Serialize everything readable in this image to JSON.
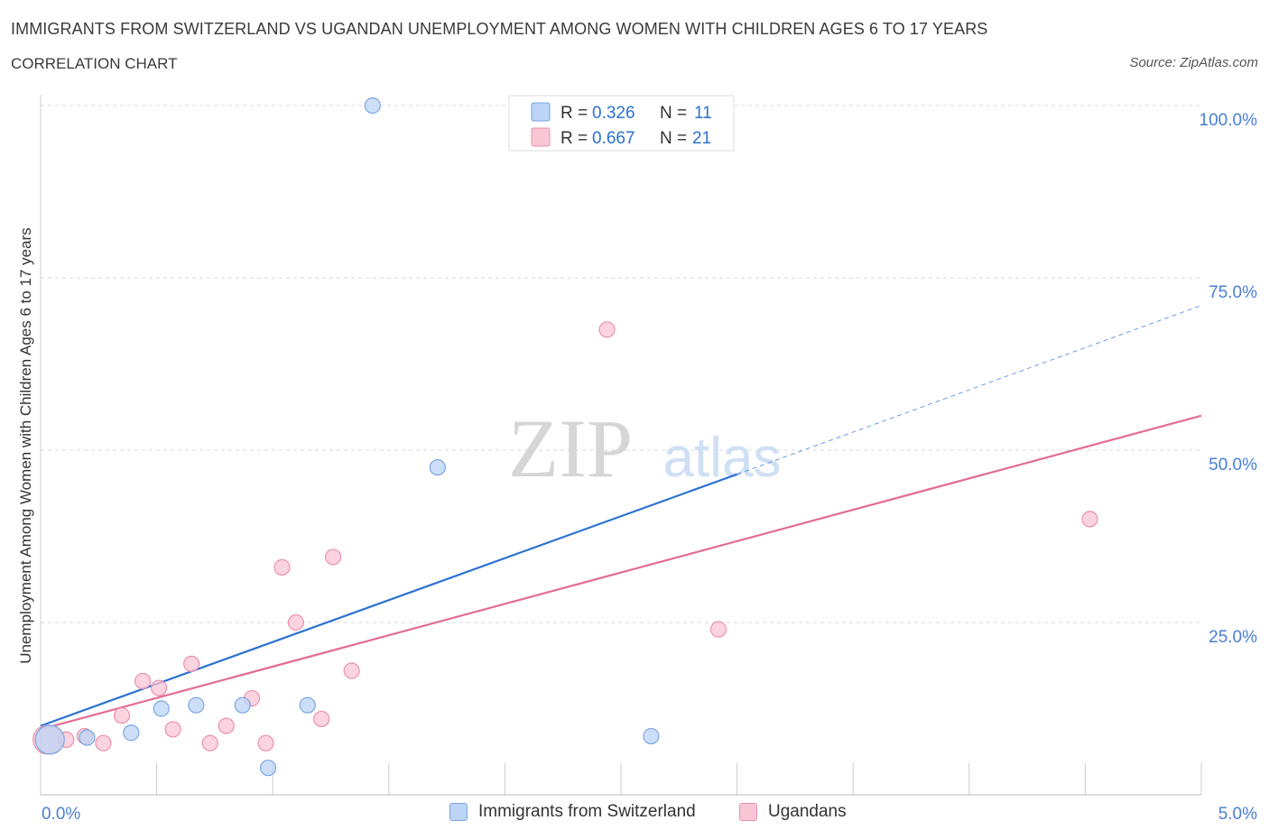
{
  "header": {
    "title": "IMMIGRANTS FROM SWITZERLAND VS UGANDAN UNEMPLOYMENT AMONG WOMEN WITH CHILDREN AGES 6 TO 17 YEARS",
    "subtitle": "CORRELATION CHART",
    "source": "Source: ZipAtlas.com"
  },
  "colors": {
    "blue_fill": "#bcd4f5",
    "blue_stroke": "#7aa6e0",
    "blue_line": "#2b72d1",
    "pink_fill": "#f9c6d6",
    "pink_stroke": "#eb90ae",
    "pink_line": "#e36b96",
    "axis_label": "#4a7fd4",
    "grid": "#d9d9d9"
  },
  "chart_data": {
    "type": "scatter",
    "ylabel": "Unemployment Among Women with Children Ages 6 to 17 years",
    "xlim": [
      0,
      5
    ],
    "ylim": [
      0,
      100
    ],
    "x_tick_labels": [
      "0.0%",
      "5.0%"
    ],
    "y_tick_labels": [
      "25.0%",
      "50.0%",
      "75.0%",
      "100.0%"
    ],
    "y_ticks": [
      25,
      50,
      75,
      100
    ],
    "grid": true,
    "legend_position": "top-center",
    "watermark": {
      "zip": "ZIP",
      "atlas": "atlas"
    },
    "legend_stats": [
      {
        "r_label": "R = ",
        "r_value": "0.326",
        "n_label": "N = ",
        "n_value": "11"
      },
      {
        "r_label": "R = ",
        "r_value": "0.667",
        "n_label": "N = ",
        "n_value": "21"
      }
    ],
    "series": [
      {
        "name": "Immigrants from Switzerland",
        "points": [
          {
            "x": 0.04,
            "y": 8.0,
            "size": "large"
          },
          {
            "x": 0.2,
            "y": 8.3
          },
          {
            "x": 0.39,
            "y": 9.0
          },
          {
            "x": 0.52,
            "y": 12.5
          },
          {
            "x": 0.67,
            "y": 13.0
          },
          {
            "x": 0.87,
            "y": 13.0
          },
          {
            "x": 0.98,
            "y": 3.9
          },
          {
            "x": 1.15,
            "y": 13.0
          },
          {
            "x": 1.43,
            "y": 100.0
          },
          {
            "x": 1.71,
            "y": 47.5
          },
          {
            "x": 2.63,
            "y": 8.5
          }
        ],
        "trend": {
          "x0": 0,
          "y0": 10,
          "x1": 3.0,
          "y1": 46.5,
          "dashed_to_x": 5.0,
          "dashed_to_y": 71.0
        }
      },
      {
        "name": "Ugandans",
        "points": [
          {
            "x": 0.03,
            "y": 8.0,
            "size": "large"
          },
          {
            "x": 0.11,
            "y": 8.0
          },
          {
            "x": 0.19,
            "y": 8.5
          },
          {
            "x": 0.27,
            "y": 7.5
          },
          {
            "x": 0.35,
            "y": 11.5
          },
          {
            "x": 0.44,
            "y": 16.5
          },
          {
            "x": 0.51,
            "y": 15.5
          },
          {
            "x": 0.57,
            "y": 9.5
          },
          {
            "x": 0.65,
            "y": 19.0
          },
          {
            "x": 0.73,
            "y": 7.5
          },
          {
            "x": 0.8,
            "y": 10.0
          },
          {
            "x": 0.91,
            "y": 14.0
          },
          {
            "x": 0.97,
            "y": 7.5
          },
          {
            "x": 1.04,
            "y": 33.0
          },
          {
            "x": 1.1,
            "y": 25.0
          },
          {
            "x": 1.21,
            "y": 11.0
          },
          {
            "x": 1.26,
            "y": 34.5
          },
          {
            "x": 1.34,
            "y": 18.0
          },
          {
            "x": 2.44,
            "y": 67.5
          },
          {
            "x": 2.92,
            "y": 24.0
          },
          {
            "x": 4.52,
            "y": 40.0
          }
        ],
        "trend": {
          "x0": 0,
          "y0": 9.5,
          "x1": 5.0,
          "y1": 55.0
        }
      }
    ]
  }
}
